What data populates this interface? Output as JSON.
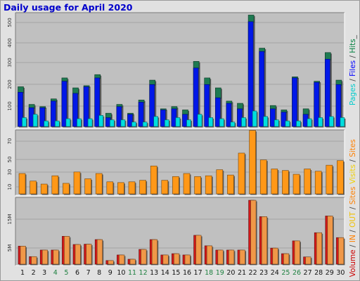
{
  "chart_data": {
    "type": "bar",
    "title": "Daily usage for April 2020",
    "categories": [
      "1",
      "2",
      "3",
      "4",
      "5",
      "6",
      "7",
      "8",
      "9",
      "10",
      "11",
      "12",
      "13",
      "14",
      "15",
      "16",
      "17",
      "18",
      "19",
      "20",
      "21",
      "22",
      "23",
      "24",
      "25",
      "26",
      "27",
      "28",
      "29",
      "30"
    ],
    "weekend_categories": [
      "4",
      "5",
      "11",
      "12",
      "18",
      "19",
      "25",
      "26"
    ],
    "panels": [
      {
        "id": "hits",
        "yticks": [
          "500",
          "400",
          "300",
          "200",
          "100"
        ],
        "ymax": 500,
        "right_label": [
          {
            "text": "Pages",
            "color": "#00cccc"
          },
          {
            "text": " / ",
            "color": "#444444"
          },
          {
            "text": "Files",
            "color": "#0000ff"
          },
          {
            "text": " / ",
            "color": "#444444"
          },
          {
            "text": "Hits",
            "color": "#008040"
          },
          {
            "text": "_",
            "color": "#444444"
          }
        ],
        "series": [
          {
            "name": "Hits",
            "color": "#1e7a52",
            "values": [
              180,
              100,
              90,
              125,
              220,
              175,
              185,
              235,
              60,
              100,
              60,
              120,
              210,
              80,
              90,
              75,
              295,
              220,
              175,
              115,
              105,
              505,
              355,
              95,
              75,
              225,
              80,
              205,
              335,
              210
            ]
          },
          {
            "name": "Files",
            "color": "#0018e8",
            "values": [
              155,
              85,
              85,
              115,
              205,
              150,
              180,
              220,
              40,
              90,
              55,
              110,
              190,
              75,
              80,
              55,
              265,
              190,
              130,
              105,
              80,
              475,
              340,
              80,
              65,
              220,
              55,
              200,
              305,
              190
            ]
          },
          {
            "name": "Pages",
            "color": "#00dede",
            "values": [
              40,
              55,
              25,
              25,
              35,
              35,
              35,
              50,
              30,
              30,
              20,
              20,
              45,
              30,
              40,
              30,
              55,
              40,
              35,
              20,
              40,
              70,
              45,
              30,
              25,
              25,
              35,
              40,
              45,
              40
            ]
          }
        ]
      },
      {
        "id": "visits",
        "yticks": [
          "70",
          "50",
          "30",
          "10"
        ],
        "ymax": 80,
        "right_label": [
          {
            "text": "Visits",
            "color": "#f0d000"
          },
          {
            "text": " / ",
            "color": "#444444"
          },
          {
            "text": "Sites",
            "color": "#ff8000"
          }
        ],
        "series": [
          {
            "name": "Visits",
            "color": "#ff9818",
            "values": [
              27,
              17,
              13,
              24,
              14,
              29,
              20,
              27,
              16,
              15,
              16,
              18,
              37,
              18,
              23,
              27,
              23,
              24,
              32,
              25,
              54,
              84,
              45,
              33,
              31,
              26,
              33,
              30,
              38,
              44
            ]
          }
        ]
      },
      {
        "id": "volume",
        "yticks": [
          "15M",
          "5M"
        ],
        "ymax": 19.3,
        "right_label": [
          {
            "text": "Volume",
            "color": "#cc0000"
          },
          {
            "text": " / ",
            "color": "#444444"
          },
          {
            "text": "IN",
            "color": "#ff8000"
          },
          {
            "text": " / ",
            "color": "#444444"
          },
          {
            "text": "OUT",
            "color": "#f0c000"
          },
          {
            "text": " / ",
            "color": "#444444"
          },
          {
            "text": "Sites",
            "color": "#ff8000"
          }
        ],
        "series": [
          {
            "name": "Volume",
            "color": "#d21818",
            "values": [
              5.5,
              2.3,
              4.3,
              4.3,
              8.5,
              6,
              6.1,
              7.5,
              1.1,
              2.8,
              1.5,
              4.5,
              7.5,
              2.8,
              3.2,
              2.8,
              8.8,
              5.6,
              4.3,
              4.3,
              4.3,
              19.5,
              14.5,
              4.9,
              3.2,
              7.1,
              2.2,
              9.6,
              14.7,
              8.1
            ]
          },
          {
            "name": "IN",
            "color": "#f09848",
            "values": [
              5.5,
              2.3,
              4.3,
              4.3,
              8.5,
              6,
              6.1,
              7.5,
              1.1,
              2.8,
              1.5,
              4.5,
              7.5,
              2.8,
              3.2,
              2.8,
              8.8,
              5.6,
              4.3,
              4.3,
              4.3,
              19.5,
              14.5,
              4.9,
              3.2,
              7.1,
              2.2,
              9.6,
              14.7,
              8.1
            ]
          }
        ]
      }
    ]
  }
}
